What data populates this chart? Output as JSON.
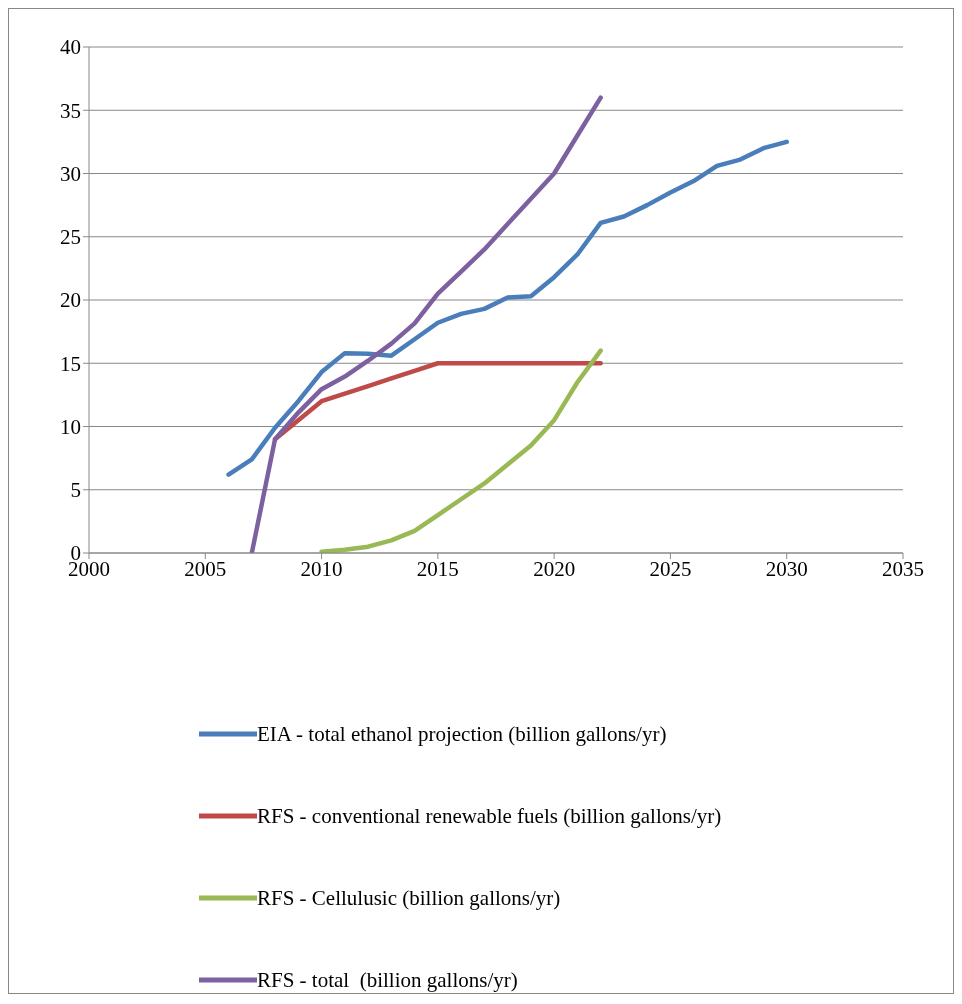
{
  "chart_data": {
    "type": "line",
    "xlim": [
      2000,
      2035
    ],
    "xticks": [
      2000,
      2005,
      2010,
      2015,
      2020,
      2025,
      2030,
      2035
    ],
    "ylim": [
      0,
      40
    ],
    "yticks": [
      0,
      5,
      10,
      15,
      20,
      25,
      30,
      35,
      40
    ],
    "grid": "y",
    "legend": "bottom",
    "marker": "none",
    "line_style": "solid",
    "series": [
      {
        "name": "EIA - total ethanol projection (billion gallons/yr)",
        "color": "#4a7ebb",
        "x": [
          2006,
          2007,
          2008,
          2009,
          2010,
          2011,
          2012,
          2013,
          2014,
          2015,
          2016,
          2017,
          2018,
          2019,
          2020,
          2021,
          2022,
          2023,
          2024,
          2025,
          2026,
          2027,
          2028,
          2029,
          2030
        ],
        "values": [
          6.2,
          7.4,
          9.9,
          12.0,
          14.3,
          15.8,
          15.75,
          15.6,
          16.9,
          18.2,
          18.9,
          19.3,
          20.2,
          20.3,
          21.8,
          23.6,
          26.1,
          26.6,
          27.5,
          28.5,
          29.4,
          30.6,
          31.1,
          32.0,
          32.5
        ]
      },
      {
        "name": "RFS - conventional renewable fuels (billion gallons/yr)",
        "color": "#be4b48",
        "x": [
          2008,
          2009,
          2010,
          2011,
          2012,
          2013,
          2014,
          2015,
          2016,
          2017,
          2018,
          2019,
          2020,
          2021,
          2022
        ],
        "values": [
          9,
          10.5,
          12,
          12.6,
          13.2,
          13.8,
          14.4,
          15,
          15,
          15,
          15,
          15,
          15,
          15,
          15
        ]
      },
      {
        "name": "RFS - Cellulusic (billion gallons/yr)",
        "color": "#98b954",
        "x": [
          2010,
          2011,
          2012,
          2013,
          2014,
          2015,
          2016,
          2017,
          2018,
          2019,
          2020,
          2021,
          2022
        ],
        "values": [
          0.1,
          0.25,
          0.5,
          1,
          1.75,
          3,
          4.25,
          5.5,
          7,
          8.5,
          10.5,
          13.5,
          16
        ]
      },
      {
        "name": "RFS - total  (billion gallons/yr)",
        "color": "#7d60a0",
        "x": [
          2007,
          2008,
          2009,
          2010,
          2011,
          2012,
          2013,
          2014,
          2015,
          2016,
          2017,
          2018,
          2019,
          2020,
          2021,
          2022
        ],
        "values": [
          0,
          9,
          11.1,
          12.95,
          13.95,
          15.2,
          16.55,
          18.15,
          20.5,
          22.25,
          24,
          26,
          28,
          30,
          33,
          36
        ]
      }
    ]
  }
}
